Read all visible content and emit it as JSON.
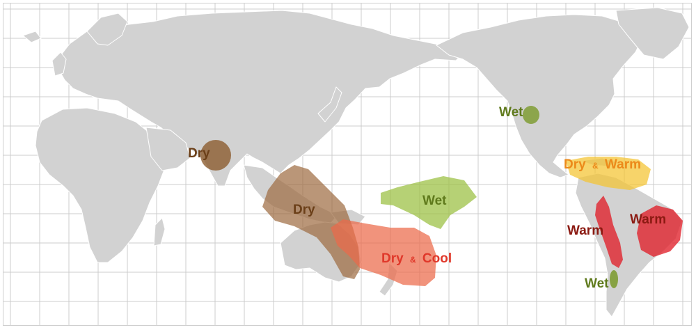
{
  "map": {
    "colors": {
      "ocean": "#ffffff",
      "land": "#d2d2d2",
      "grid": "#cccccc",
      "border": "#ffffff"
    },
    "regions": [
      {
        "id": "india-dry",
        "label": "Dry",
        "fill": "#8b5a2b",
        "text_color": "#6b3f18"
      },
      {
        "id": "indonesia-dry",
        "label": "Dry",
        "fill": "#9c6a3f",
        "text_color": "#6b3f18"
      },
      {
        "id": "australia-dry-cool",
        "label_parts": [
          "Dry",
          "&",
          "Cool"
        ],
        "fill": "#ec6a4a",
        "text_color": "#e0382a"
      },
      {
        "id": "central-pacific-wet",
        "label": "Wet",
        "fill": "#9dc247",
        "text_color": "#5f7a1c"
      },
      {
        "id": "north-america-wet",
        "label": "Wet",
        "fill": "#7a9a2a",
        "text_color": "#5f7a1c"
      },
      {
        "id": "caribbean-dry-warm",
        "label_parts": [
          "Dry",
          "&",
          "Warm"
        ],
        "fill": "#f4c430",
        "text_color": "#ec8a1a"
      },
      {
        "id": "peru-warm",
        "label": "Warm",
        "fill": "#e0202a",
        "text_color": "#8b1a12"
      },
      {
        "id": "brazil-warm",
        "label": "Warm",
        "fill": "#e0202a",
        "text_color": "#8b1a12"
      },
      {
        "id": "chile-wet",
        "label": "Wet",
        "fill": "#7a9a2a",
        "text_color": "#5f7a1c"
      }
    ]
  }
}
